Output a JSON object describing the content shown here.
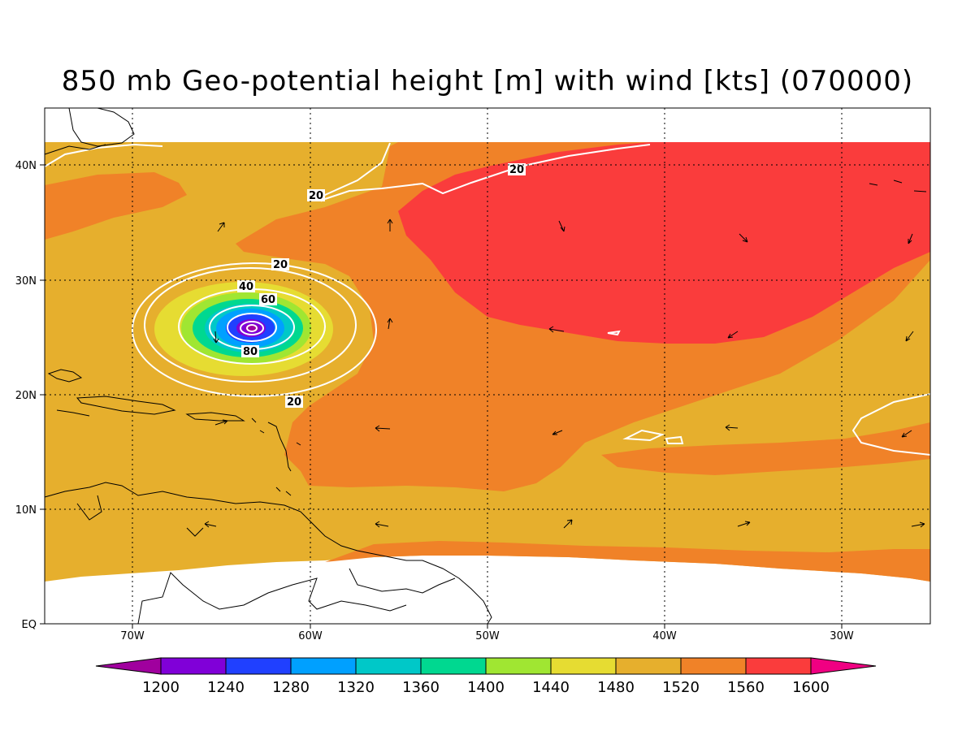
{
  "title": "850 mb Geo-potential height [m] with wind [kts] (070000)",
  "axes": {
    "lon_labels": [
      "70W",
      "60W",
      "50W",
      "40W",
      "30W"
    ],
    "lat_labels": [
      "40N",
      "30N",
      "20N",
      "10N",
      "EQ"
    ]
  },
  "contour_labels": [
    "20",
    "20",
    "20",
    "40",
    "60",
    "80",
    "20"
  ],
  "colorbar": {
    "labels": [
      "1200",
      "1240",
      "1280",
      "1320",
      "1360",
      "1400",
      "1440",
      "1480",
      "1520",
      "1560",
      "1600"
    ],
    "colors": [
      "#a0009e",
      "#8000d8",
      "#2040ff",
      "#00a0ff",
      "#00c8c8",
      "#00d890",
      "#a0e632",
      "#e6dc32",
      "#e6af2d",
      "#f08228",
      "#fa3c3c",
      "#f00082"
    ]
  },
  "colors": {
    "bg_1520": "#e6af2d",
    "band_1560": "#f08228",
    "high_1600": "#fa3c3c",
    "contour": "#ffffff",
    "coast": "#000000"
  }
}
